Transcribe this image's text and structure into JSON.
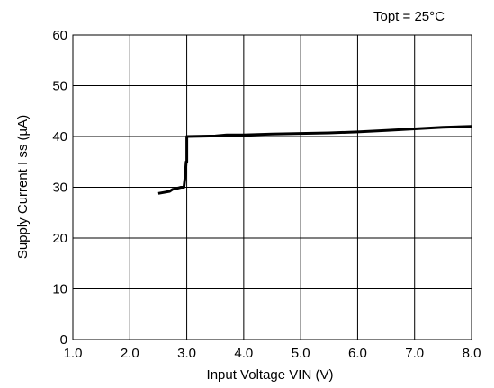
{
  "chart_data": {
    "type": "line",
    "annotation": "Topt = 25°C",
    "xlabel": "Input Voltage VIN (V)",
    "ylabel": "Supply Current I ss (µA)",
    "xlim": [
      1.0,
      8.0
    ],
    "ylim": [
      0,
      60
    ],
    "x_ticks": [
      "1.0",
      "2.0",
      "3.0",
      "4.0",
      "5.0",
      "6.0",
      "7.0",
      "8.0"
    ],
    "y_ticks": [
      "0",
      "10",
      "20",
      "30",
      "40",
      "50",
      "60"
    ],
    "grid": true,
    "series": [
      {
        "x": [
          2.5,
          2.6,
          2.7,
          2.75,
          2.8,
          2.9,
          2.95,
          2.97,
          2.98,
          2.99,
          3.0,
          3.0,
          3.5,
          3.7,
          4.0,
          4.5,
          5.0,
          5.5,
          6.0,
          6.5,
          7.0,
          7.5,
          8.0
        ],
        "y": [
          28.8,
          29.0,
          29.2,
          29.6,
          29.7,
          30.0,
          30.0,
          32.0,
          33.5,
          35.0,
          35.0,
          40.0,
          40.1,
          40.3,
          40.3,
          40.5,
          40.6,
          40.7,
          40.9,
          41.2,
          41.5,
          41.8,
          42.0
        ]
      }
    ]
  }
}
